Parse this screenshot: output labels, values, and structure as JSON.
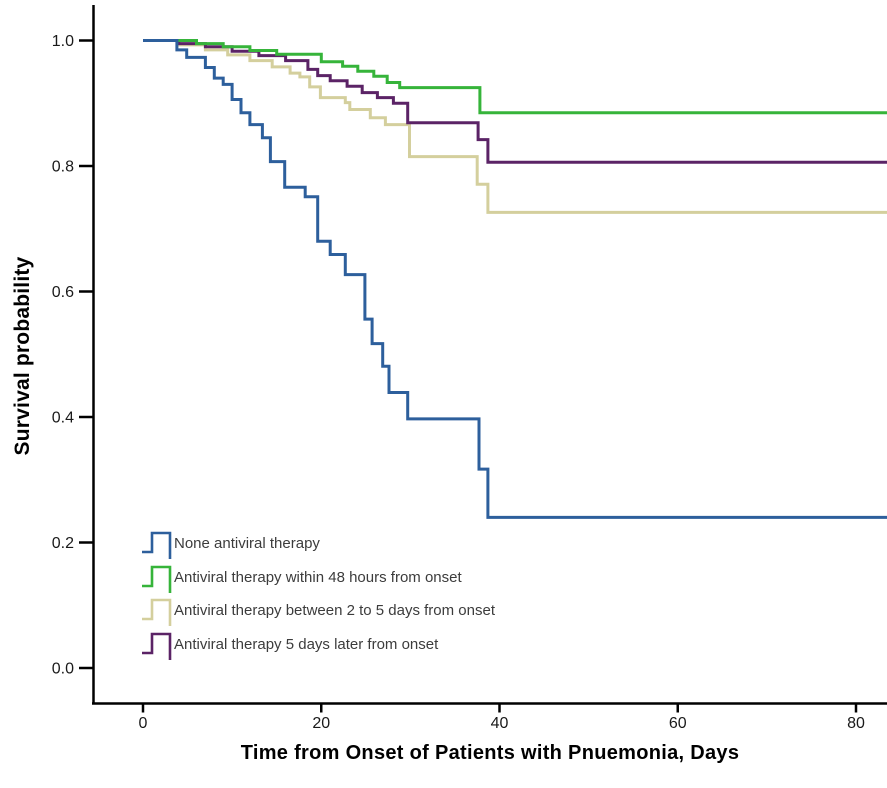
{
  "chart_data": {
    "type": "line",
    "subtype": "kaplan-meier-step",
    "title": "",
    "xlabel": "Time from Onset of Patients with Pnuemonia, Days",
    "ylabel": "Survival probability",
    "x_ticks": [
      0,
      20,
      40,
      60,
      80
    ],
    "y_ticks": [
      0.0,
      0.2,
      0.4,
      0.6,
      0.8,
      1.0
    ],
    "xlim": [
      0,
      83.5
    ],
    "ylim": [
      0.0,
      1.0
    ],
    "grid": false,
    "legend_position": "inside-lower-left",
    "x_end": 83.5,
    "series": [
      {
        "name": "None antiviral therapy",
        "color": "#2d5f9c",
        "final_probability": 0.24,
        "points": [
          [
            0,
            1.0
          ],
          [
            3.8,
            0.985
          ],
          [
            4.9,
            0.973
          ],
          [
            7.0,
            0.957
          ],
          [
            8.0,
            0.94
          ],
          [
            9.0,
            0.93
          ],
          [
            10.0,
            0.906
          ],
          [
            11.0,
            0.885
          ],
          [
            12.0,
            0.866
          ],
          [
            13.4,
            0.845
          ],
          [
            14.3,
            0.807
          ],
          [
            15.9,
            0.766
          ],
          [
            18.2,
            0.751
          ],
          [
            19.6,
            0.68
          ],
          [
            21.0,
            0.659
          ],
          [
            22.7,
            0.627
          ],
          [
            24.9,
            0.556
          ],
          [
            25.7,
            0.517
          ],
          [
            26.9,
            0.481
          ],
          [
            27.6,
            0.439
          ],
          [
            29.7,
            0.397
          ],
          [
            37.7,
            0.317
          ],
          [
            38.7,
            0.24
          ]
        ]
      },
      {
        "name": "Antiviral therapy within 48 hours from onset",
        "color": "#36b43a",
        "final_probability": 0.885,
        "points": [
          [
            0,
            1.0
          ],
          [
            6.0,
            0.995
          ],
          [
            9.0,
            0.99
          ],
          [
            12.0,
            0.984
          ],
          [
            15.0,
            0.978
          ],
          [
            20.0,
            0.966
          ],
          [
            22.4,
            0.959
          ],
          [
            24.1,
            0.951
          ],
          [
            25.9,
            0.943
          ],
          [
            27.4,
            0.933
          ],
          [
            28.8,
            0.925
          ],
          [
            37.8,
            0.885
          ]
        ]
      },
      {
        "name": "Antiviral therapy between 2 to 5 days from onset",
        "color": "#d4cf9d",
        "final_probability": 0.726,
        "points": [
          [
            0,
            1.0
          ],
          [
            4.0,
            0.993
          ],
          [
            7.0,
            0.985
          ],
          [
            9.5,
            0.977
          ],
          [
            12.0,
            0.968
          ],
          [
            14.5,
            0.958
          ],
          [
            16.5,
            0.948
          ],
          [
            17.6,
            0.942
          ],
          [
            18.7,
            0.926
          ],
          [
            19.9,
            0.909
          ],
          [
            22.7,
            0.901
          ],
          [
            23.2,
            0.89
          ],
          [
            25.5,
            0.877
          ],
          [
            27.2,
            0.866
          ],
          [
            29.9,
            0.815
          ],
          [
            37.5,
            0.771
          ],
          [
            38.7,
            0.726
          ]
        ]
      },
      {
        "name": "Antiviral therapy 5 days later from onset",
        "color": "#5b2366",
        "final_probability": 0.806,
        "points": [
          [
            0,
            1.0
          ],
          [
            4.0,
            0.995
          ],
          [
            7.0,
            0.99
          ],
          [
            10.0,
            0.983
          ],
          [
            13.0,
            0.976
          ],
          [
            16.0,
            0.968
          ],
          [
            18.5,
            0.954
          ],
          [
            19.6,
            0.944
          ],
          [
            21.0,
            0.936
          ],
          [
            22.9,
            0.927
          ],
          [
            24.6,
            0.917
          ],
          [
            26.3,
            0.909
          ],
          [
            28.1,
            0.9
          ],
          [
            29.7,
            0.869
          ],
          [
            37.6,
            0.842
          ],
          [
            38.7,
            0.806
          ]
        ]
      }
    ]
  }
}
